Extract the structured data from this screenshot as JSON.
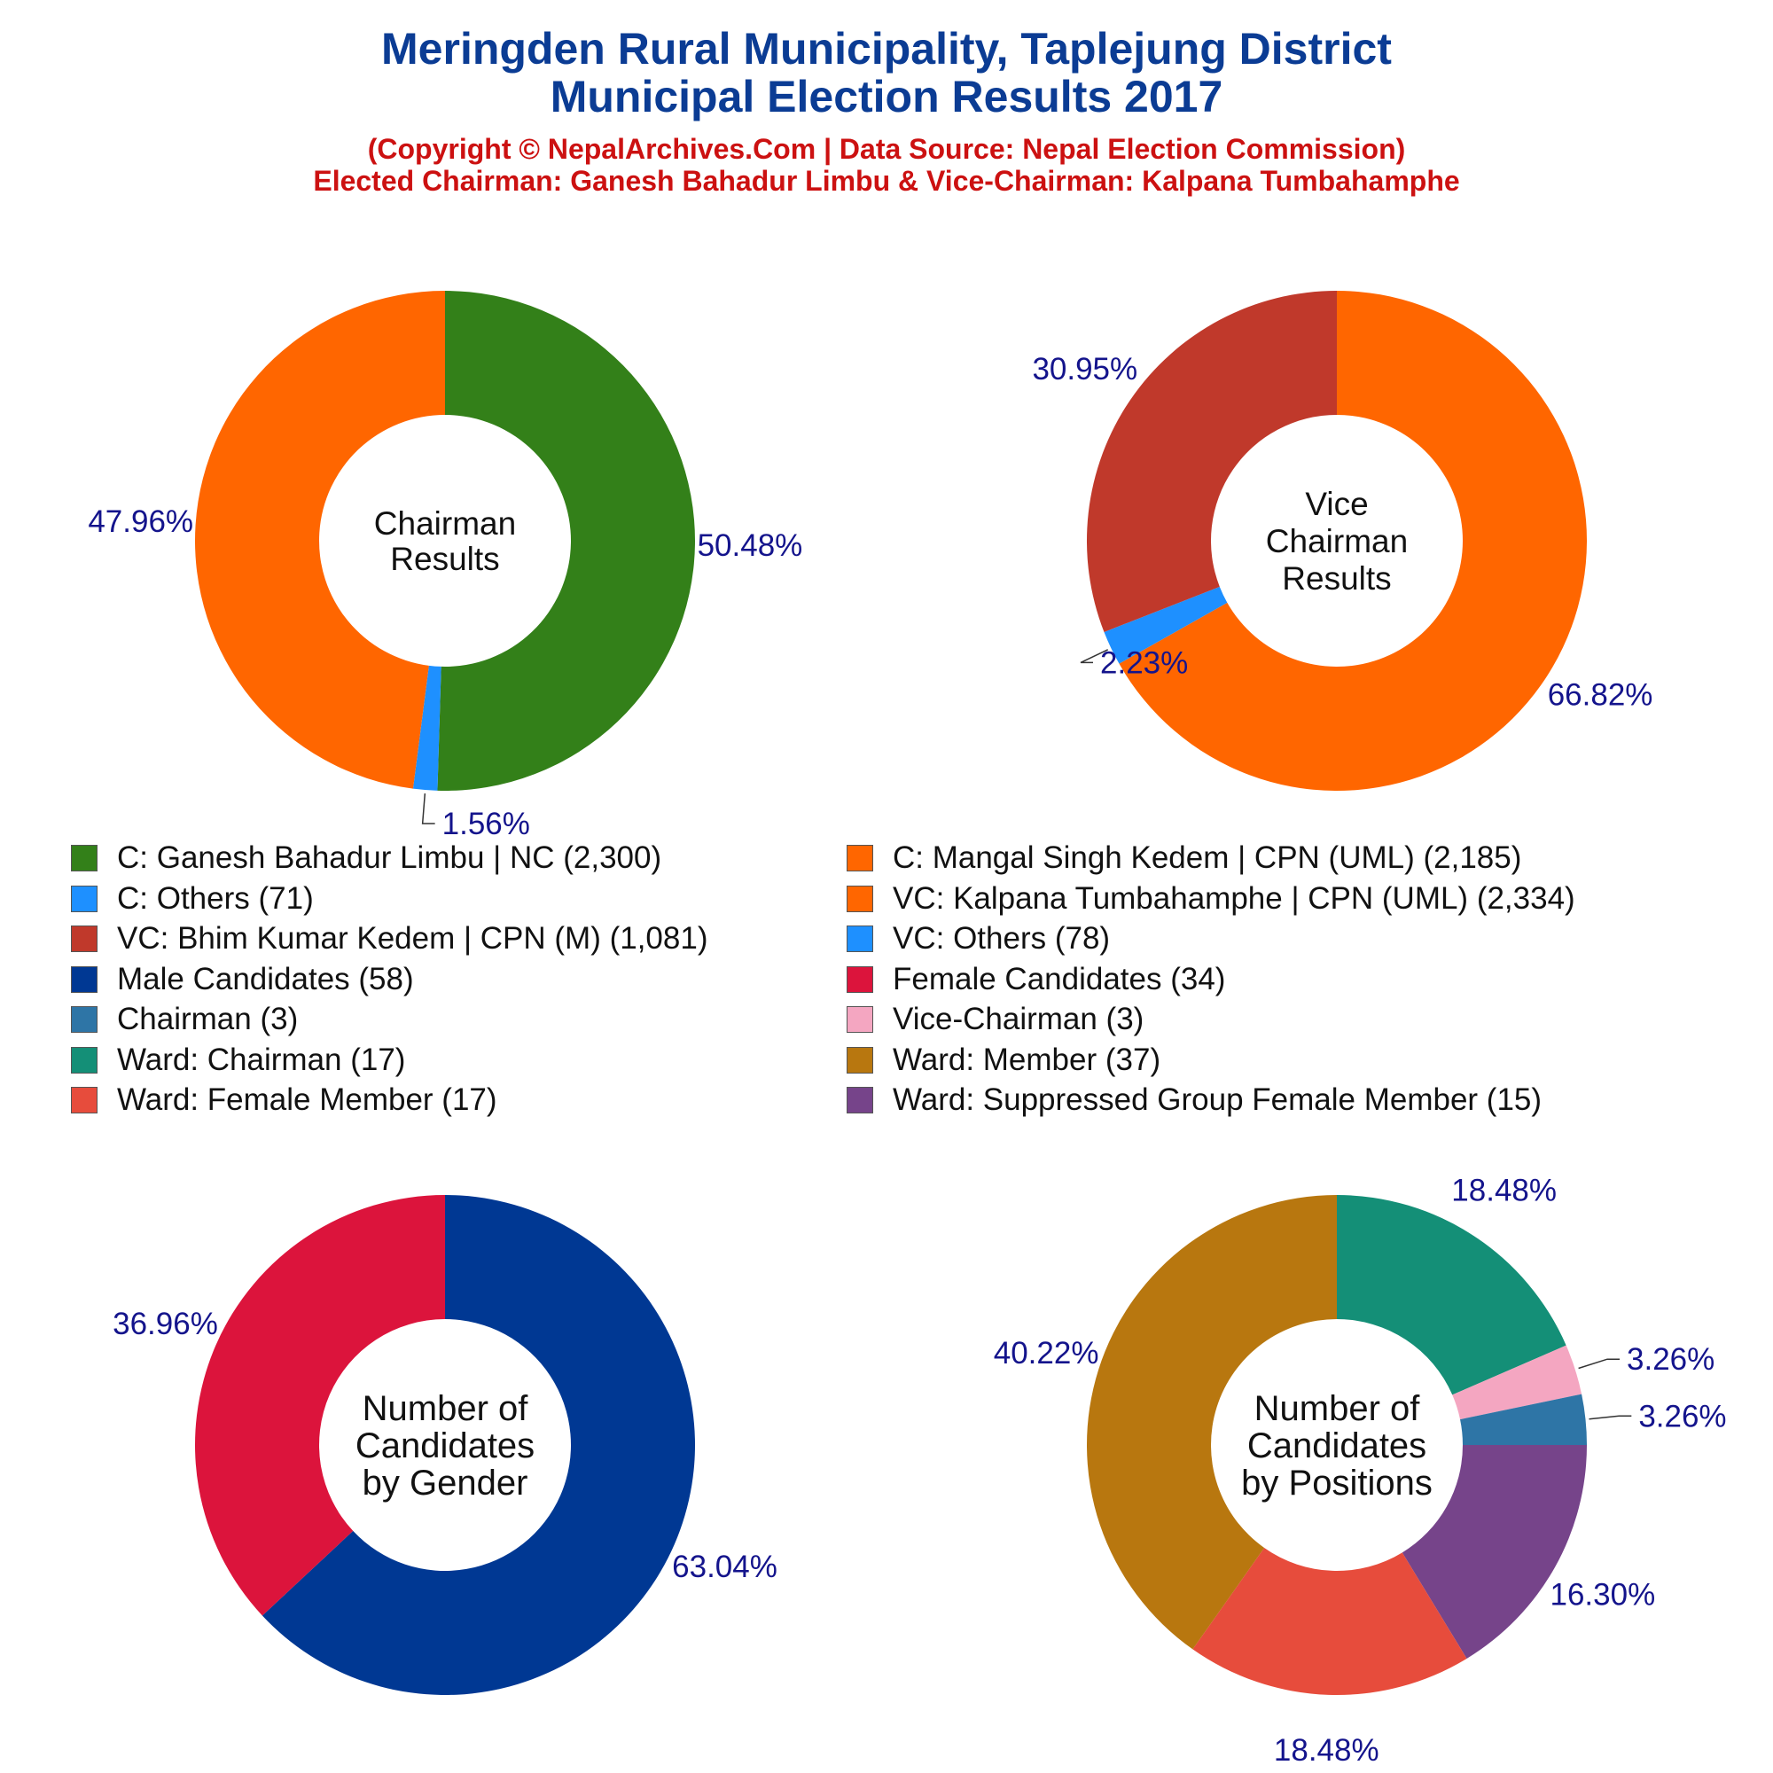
{
  "header": {
    "title_line1": "Meringden Rural Municipality, Taplejung District",
    "title_line2": "Municipal Election Results 2017",
    "subtitle_line1": "(Copyright © NepalArchives.Com | Data Source: Nepal Election Commission)",
    "subtitle_line2": "Elected Chairman: Ganesh Bahadur Limbu & Vice-Chairman: Kalpana Tumbahamphe"
  },
  "colors": {
    "title": "#0b3c94",
    "subtitle": "#cc1111",
    "percent_label": "#14148c"
  },
  "legend": {
    "items": [
      {
        "label": "C: Ganesh Bahadur Limbu | NC (2,300)",
        "color": "#338019"
      },
      {
        "label": "C: Mangal Singh Kedem | CPN (UML) (2,185)",
        "color": "#ff6600"
      },
      {
        "label": "C: Others (71)",
        "color": "#1e90ff"
      },
      {
        "label": "VC: Kalpana Tumbahamphe | CPN (UML) (2,334)",
        "color": "#ff6600"
      },
      {
        "label": "VC: Bhim Kumar Kedem | CPN (M) (1,081)",
        "color": "#c0392b"
      },
      {
        "label": "VC: Others (78)",
        "color": "#1e90ff"
      },
      {
        "label": "Male Candidates (58)",
        "color": "#003893"
      },
      {
        "label": "Female Candidates (34)",
        "color": "#dc143c"
      },
      {
        "label": "Chairman (3)",
        "color": "#2e75a6"
      },
      {
        "label": "Vice-Chairman (3)",
        "color": "#f4a6c1"
      },
      {
        "label": "Ward: Chairman (17)",
        "color": "#148f77"
      },
      {
        "label": "Ward: Member (37)",
        "color": "#b8770f"
      },
      {
        "label": "Ward: Female Member (17)",
        "color": "#e74c3c"
      },
      {
        "label": "Ward: Suppressed Group Female Member (15)",
        "color": "#76448a"
      }
    ]
  },
  "chart_data": [
    {
      "type": "pie",
      "donut": true,
      "center_text": [
        "Chairman",
        "Results"
      ],
      "slices": [
        {
          "name": "C: Ganesh Bahadur Limbu | NC",
          "value": 2300,
          "label": "50.48%",
          "color": "#338019"
        },
        {
          "name": "C: Others",
          "value": 71,
          "label": "1.56%",
          "color": "#1e90ff"
        },
        {
          "name": "C: Mangal Singh Kedem | CPN (UML)",
          "value": 2185,
          "label": "47.96%",
          "color": "#ff6600"
        }
      ]
    },
    {
      "type": "pie",
      "donut": true,
      "center_text": [
        "Vice",
        "Chairman",
        "Results"
      ],
      "slices": [
        {
          "name": "VC: Kalpana Tumbahamphe | CPN (UML)",
          "value": 2334,
          "label": "66.82%",
          "color": "#ff6600"
        },
        {
          "name": "VC: Others",
          "value": 78,
          "label": "2.23%",
          "color": "#1e90ff"
        },
        {
          "name": "VC: Bhim Kumar Kedem | CPN (M)",
          "value": 1081,
          "label": "30.95%",
          "color": "#c0392b"
        }
      ]
    },
    {
      "type": "pie",
      "donut": true,
      "center_text": [
        "Number of",
        "Candidates",
        "by Gender"
      ],
      "slices": [
        {
          "name": "Male Candidates",
          "value": 58,
          "label": "63.04%",
          "color": "#003893"
        },
        {
          "name": "Female Candidates",
          "value": 34,
          "label": "36.96%",
          "color": "#dc143c"
        }
      ]
    },
    {
      "type": "pie",
      "donut": true,
      "center_text": [
        "Number of",
        "Candidates",
        "by Positions"
      ],
      "slices": [
        {
          "name": "Ward: Chairman",
          "value": 17,
          "label": "18.48%",
          "color": "#148f77"
        },
        {
          "name": "Vice-Chairman",
          "value": 3,
          "label": "3.26%",
          "color": "#f4a6c1"
        },
        {
          "name": "Chairman",
          "value": 3,
          "label": "3.26%",
          "color": "#2e75a6"
        },
        {
          "name": "Ward: Suppressed Group Female Member",
          "value": 15,
          "label": "16.30%",
          "color": "#76448a"
        },
        {
          "name": "Ward: Female Member",
          "value": 17,
          "label": "18.48%",
          "color": "#e74c3c"
        },
        {
          "name": "Ward: Member",
          "value": 37,
          "label": "40.22%",
          "color": "#b8770f"
        }
      ]
    }
  ]
}
